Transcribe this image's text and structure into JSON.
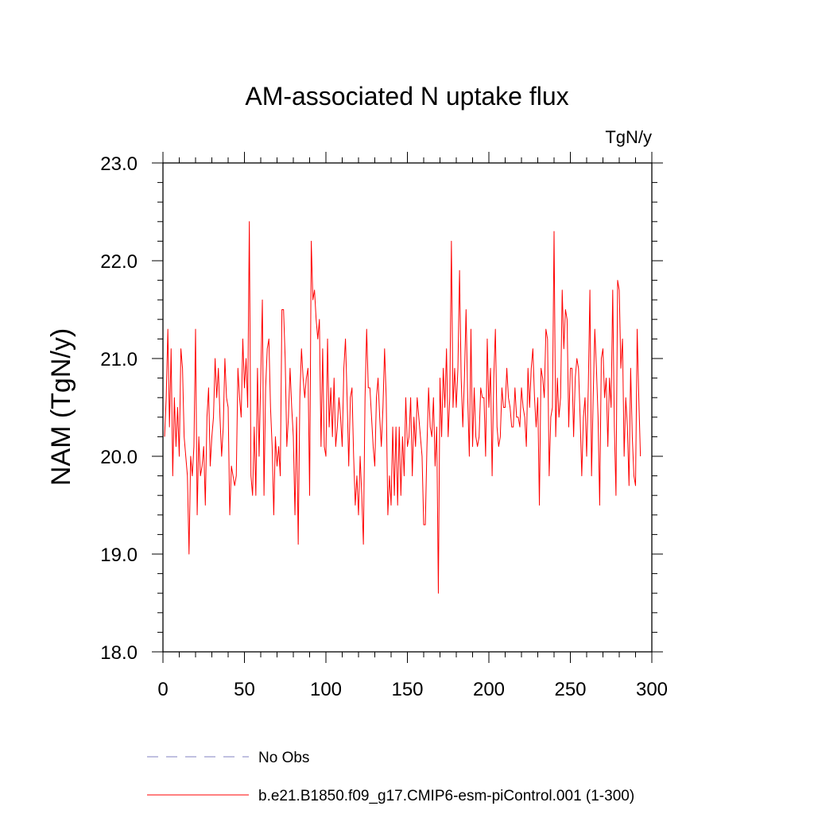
{
  "chart_data": {
    "type": "line",
    "title": "AM-associated N uptake flux",
    "units_label": "TgN/y",
    "ylabel": "NAM  (TgN/y)",
    "xlabel": "",
    "xlim": [
      0,
      300
    ],
    "ylim": [
      18.0,
      23.0
    ],
    "x_ticks": [
      0,
      50,
      100,
      150,
      200,
      250,
      300
    ],
    "x_tick_labels": [
      "0",
      "50",
      "100",
      "150",
      "200",
      "250",
      "300"
    ],
    "y_ticks": [
      18.0,
      19.0,
      20.0,
      21.0,
      22.0,
      23.0
    ],
    "y_tick_labels": [
      "18.0",
      "19.0",
      "20.0",
      "21.0",
      "22.0",
      "23.0"
    ],
    "legend": [
      {
        "label": "No Obs",
        "color": "#8080c0",
        "style": "dashed"
      },
      {
        "label": "b.e21.B1850.f09_g17.CMIP6-esm-piControl.001 (1-300)",
        "color": "#ff0000",
        "style": "solid"
      }
    ],
    "series": [
      {
        "name": "b.e21.B1850.f09_g17.CMIP6-esm-piControl.001 (1-300)",
        "color": "#ff0000",
        "x_start": 1,
        "values": [
          20.2,
          20.6,
          21.3,
          20.3,
          21.1,
          19.8,
          20.6,
          20.1,
          20.5,
          20.0,
          21.1,
          20.9,
          20.2,
          20.0,
          19.8,
          19.0,
          20.0,
          19.8,
          20.1,
          21.3,
          19.4,
          20.2,
          19.8,
          19.9,
          20.1,
          19.5,
          20.4,
          20.7,
          19.9,
          20.2,
          20.4,
          21.0,
          20.6,
          20.9,
          20.4,
          20.0,
          20.3,
          21.0,
          20.6,
          20.5,
          19.4,
          19.9,
          19.8,
          19.7,
          19.8,
          20.9,
          20.6,
          20.4,
          21.2,
          20.7,
          21.0,
          20.5,
          22.4,
          19.8,
          19.6,
          20.3,
          19.6,
          20.9,
          20.0,
          20.8,
          21.6,
          19.6,
          20.7,
          21.1,
          21.2,
          20.5,
          20.1,
          19.4,
          20.2,
          19.9,
          20.1,
          19.8,
          21.5,
          21.5,
          21.0,
          20.1,
          20.4,
          20.9,
          20.5,
          20.2,
          19.4,
          20.4,
          19.1,
          20.6,
          21.1,
          20.8,
          20.6,
          20.8,
          20.9,
          19.6,
          22.2,
          21.6,
          21.7,
          21.4,
          21.2,
          21.4,
          20.1,
          21.1,
          20.1,
          20.0,
          21.2,
          20.3,
          20.7,
          20.2,
          20.8,
          20.1,
          20.3,
          20.6,
          20.4,
          20.1,
          20.9,
          21.2,
          20.6,
          19.9,
          20.6,
          20.7,
          20.0,
          19.5,
          19.8,
          19.4,
          20.0,
          19.6,
          19.1,
          20.6,
          21.3,
          20.7,
          20.7,
          20.4,
          20.1,
          19.9,
          20.6,
          20.8,
          20.4,
          20.1,
          20.5,
          21.1,
          20.6,
          19.4,
          19.8,
          19.5,
          20.3,
          19.6,
          20.3,
          19.5,
          20.3,
          19.6,
          20.2,
          19.8,
          20.6,
          20.1,
          20.2,
          20.6,
          19.8,
          20.4,
          20.1,
          20.6,
          20.4,
          20.2,
          20.0,
          19.3,
          19.3,
          20.1,
          20.7,
          20.3,
          20.2,
          20.6,
          19.9,
          20.3,
          18.6,
          20.8,
          20.2,
          20.9,
          20.5,
          21.1,
          20.2,
          20.6,
          22.2,
          20.5,
          20.9,
          20.5,
          20.9,
          21.9,
          20.8,
          20.3,
          20.8,
          21.5,
          20.6,
          20.0,
          21.3,
          20.1,
          20.7,
          20.2,
          20.1,
          20.2,
          20.7,
          20.6,
          20.6,
          20.0,
          21.2,
          20.5,
          20.9,
          19.8,
          20.8,
          21.3,
          20.3,
          20.1,
          20.2,
          20.7,
          20.5,
          20.5,
          20.9,
          20.6,
          20.5,
          20.3,
          20.3,
          20.7,
          20.4,
          20.4,
          20.3,
          20.7,
          20.5,
          20.4,
          20.1,
          20.9,
          20.5,
          20.9,
          21.1,
          20.6,
          20.3,
          20.6,
          19.5,
          20.9,
          20.8,
          20.6,
          21.3,
          21.2,
          19.8,
          20.4,
          20.5,
          22.3,
          20.2,
          20.8,
          20.4,
          20.6,
          21.7,
          21.1,
          21.5,
          21.4,
          20.3,
          20.9,
          20.9,
          20.2,
          20.8,
          21.0,
          20.9,
          20.4,
          19.8,
          20.4,
          20.6,
          20.0,
          20.7,
          21.7,
          19.8,
          20.6,
          21.3,
          20.9,
          20.4,
          19.5,
          21.0,
          21.1,
          20.6,
          20.8,
          20.1,
          20.8,
          20.5,
          21.7,
          20.3,
          19.6,
          21.8,
          21.7,
          20.9,
          21.2,
          20.0,
          20.6,
          20.3,
          19.7,
          20.9,
          20.2,
          19.8,
          19.7,
          21.3,
          20.6,
          20.0
        ]
      }
    ]
  }
}
